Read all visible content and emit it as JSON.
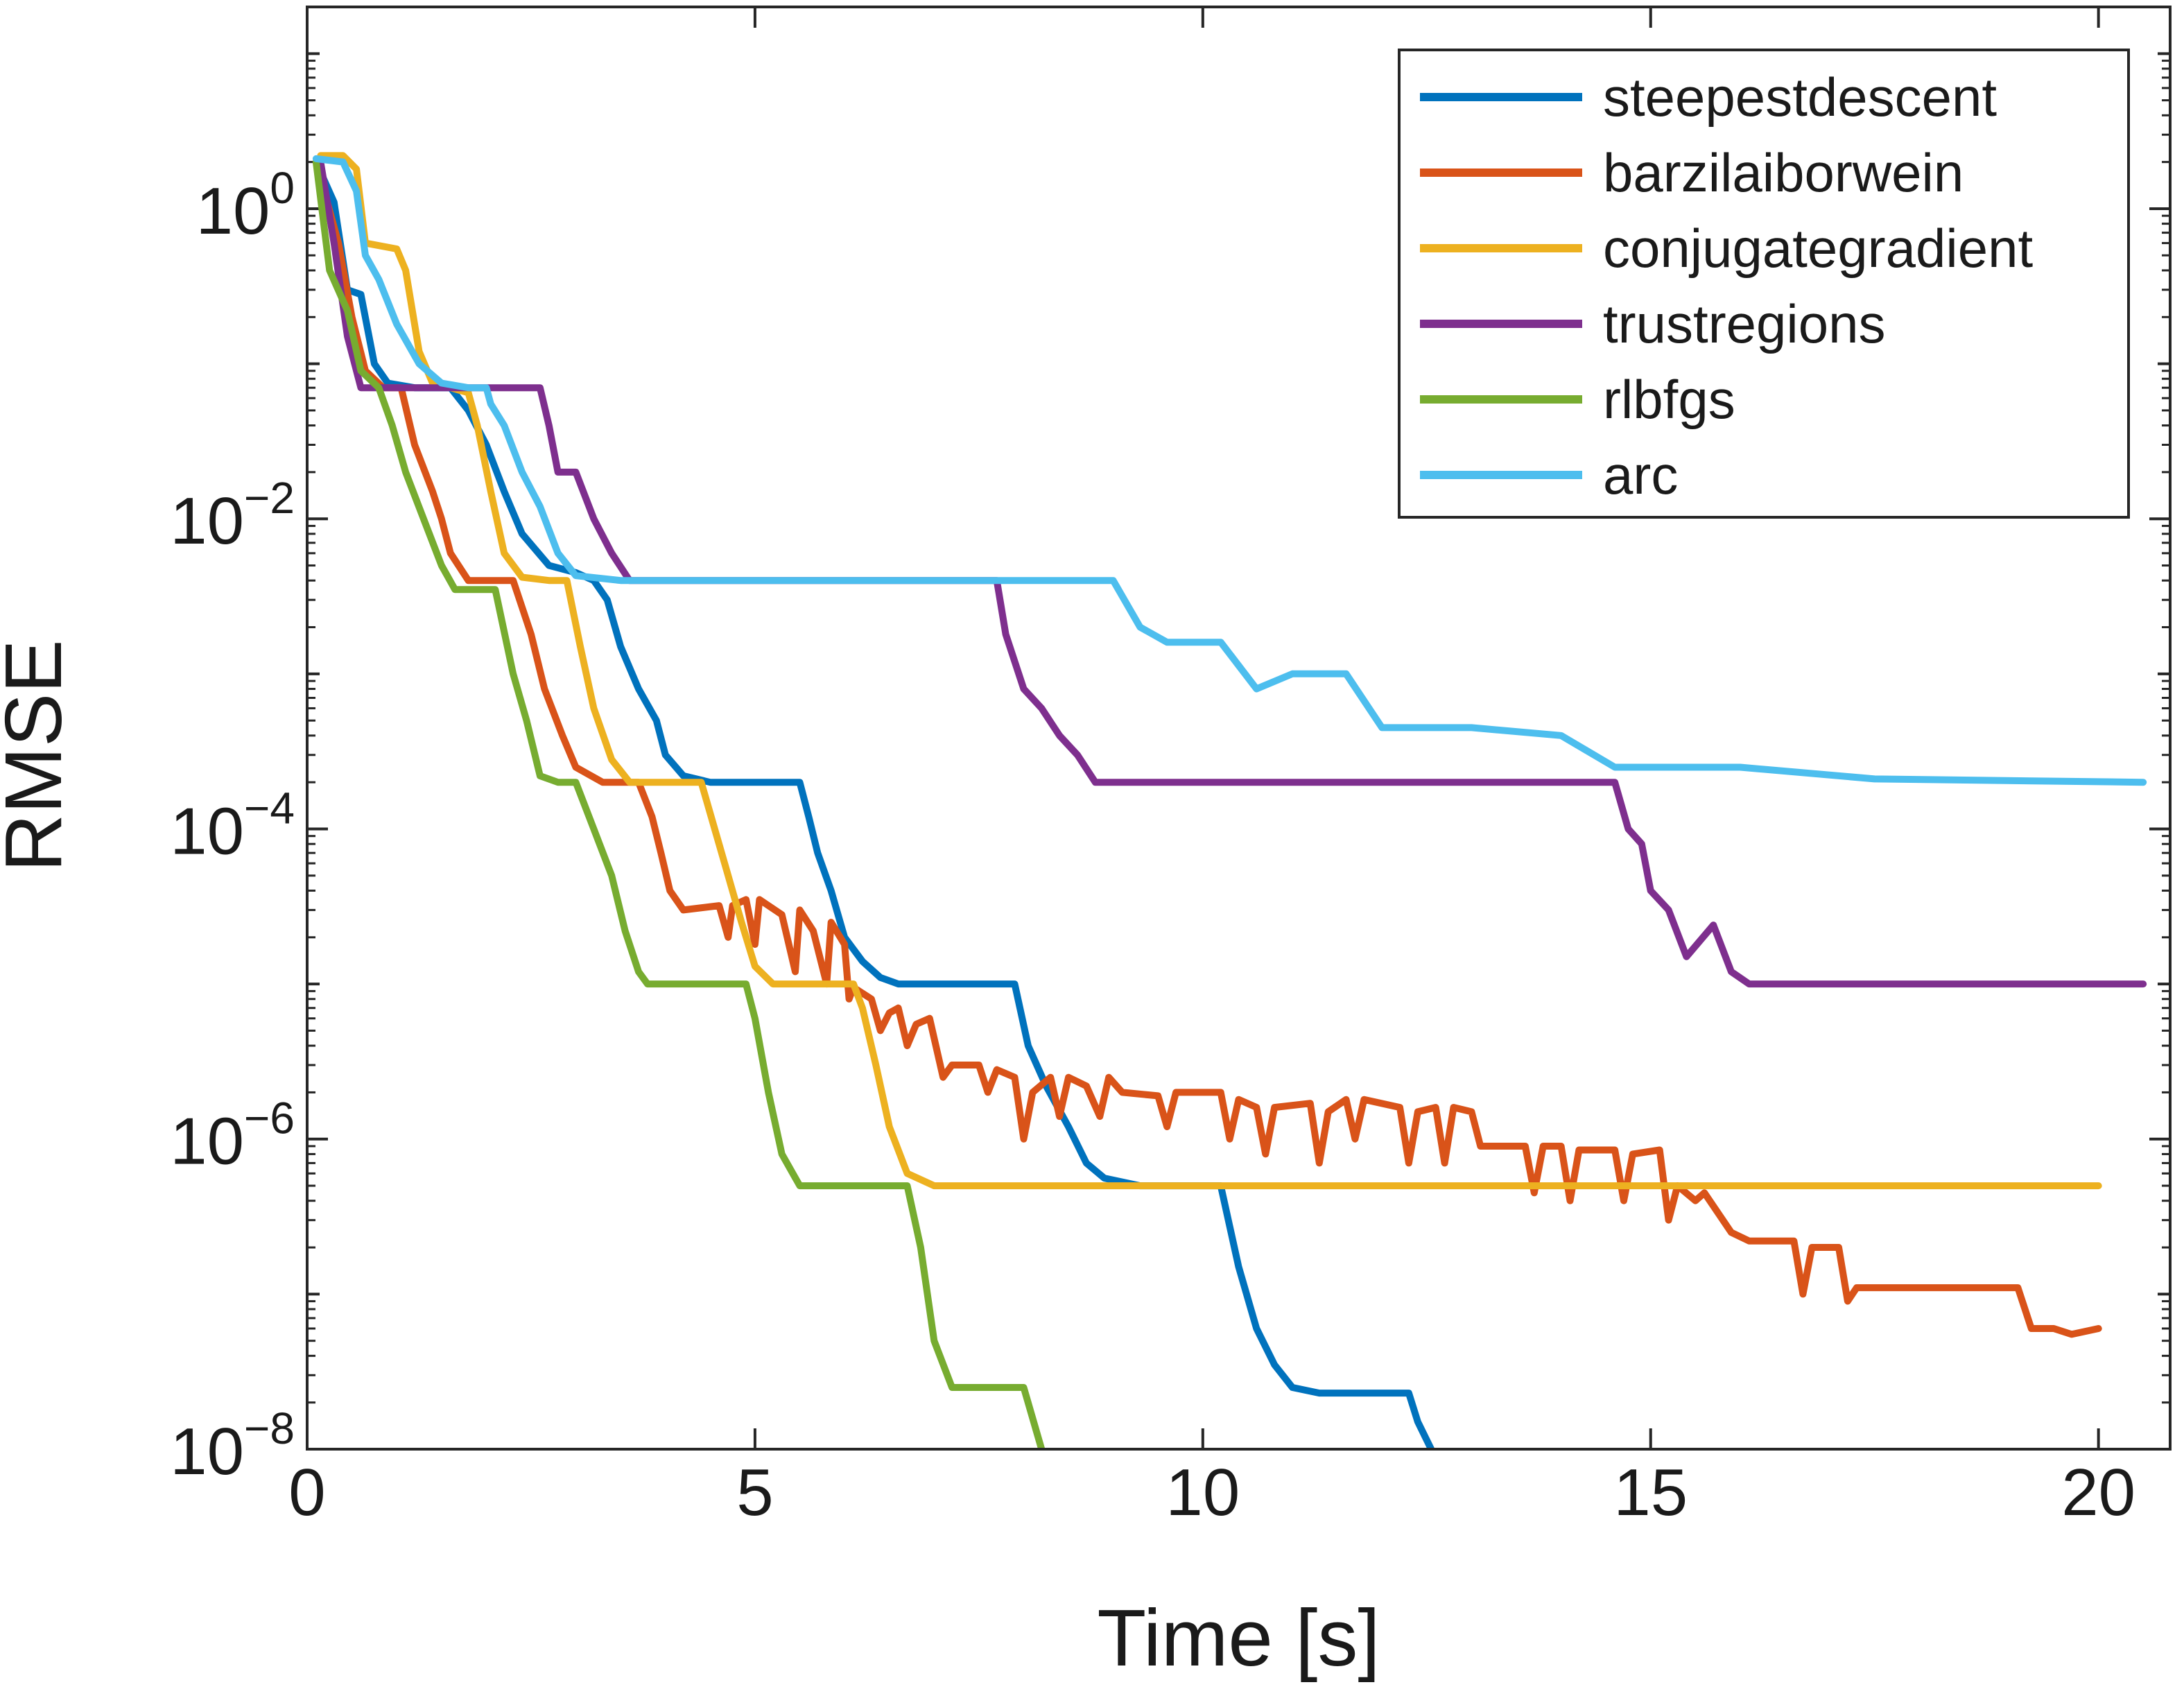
{
  "chart_data": {
    "type": "line",
    "xlabel": "Time [s]",
    "ylabel": "RMSE",
    "yscale": "log",
    "xlim": [
      0,
      20.8
    ],
    "ylim": [
      1e-08,
      20
    ],
    "xticks": [
      0,
      5,
      10,
      15,
      20
    ],
    "yticks": [
      {
        "base": "10",
        "exp": "0",
        "value": 1
      },
      {
        "base": "10",
        "exp": "−2",
        "value": 0.01
      },
      {
        "base": "10",
        "exp": "−4",
        "value": 0.0001
      },
      {
        "base": "10",
        "exp": "−6",
        "value": 1e-06
      },
      {
        "base": "10",
        "exp": "−8",
        "value": 1e-08
      }
    ],
    "grid": false,
    "legend_position": "top-right",
    "series": [
      {
        "name": "steepestdescent",
        "color": "#0072BD",
        "points": [
          [
            0.1,
            2
          ],
          [
            0.3,
            1.1
          ],
          [
            0.45,
            0.3
          ],
          [
            0.6,
            0.28
          ],
          [
            0.75,
            0.1
          ],
          [
            0.9,
            0.075
          ],
          [
            1.2,
            0.07
          ],
          [
            1.6,
            0.07
          ],
          [
            1.8,
            0.05
          ],
          [
            2.0,
            0.03
          ],
          [
            2.2,
            0.015
          ],
          [
            2.4,
            0.008
          ],
          [
            2.7,
            0.005
          ],
          [
            3.0,
            0.0045
          ],
          [
            3.2,
            0.004
          ],
          [
            3.35,
            0.003
          ],
          [
            3.5,
            0.0015
          ],
          [
            3.7,
            0.0008
          ],
          [
            3.9,
            0.0005
          ],
          [
            4.0,
            0.0003
          ],
          [
            4.2,
            0.00022
          ],
          [
            4.5,
            0.0002
          ],
          [
            5.5,
            0.0002
          ],
          [
            5.6,
            0.00012
          ],
          [
            5.7,
            7e-05
          ],
          [
            5.85,
            4e-05
          ],
          [
            6.0,
            2e-05
          ],
          [
            6.2,
            1.4e-05
          ],
          [
            6.4,
            1.1e-05
          ],
          [
            6.6,
            1e-05
          ],
          [
            7.9,
            1e-05
          ],
          [
            8.05,
            4e-06
          ],
          [
            8.25,
            2.2e-06
          ],
          [
            8.5,
            1.2e-06
          ],
          [
            8.7,
            7e-07
          ],
          [
            8.9,
            5.6e-07
          ],
          [
            9.3,
            5e-07
          ],
          [
            10.2,
            5e-07
          ],
          [
            10.4,
            1.5e-07
          ],
          [
            10.6,
            6e-08
          ],
          [
            10.8,
            3.5e-08
          ],
          [
            11.0,
            2.5e-08
          ],
          [
            11.3,
            2.3e-08
          ],
          [
            12.3,
            2.3e-08
          ],
          [
            12.4,
            1.5e-08
          ],
          [
            12.55,
            1e-08
          ]
        ]
      },
      {
        "name": "barzilaiborwein",
        "color": "#D95319",
        "points": [
          [
            0.1,
            2
          ],
          [
            0.35,
            0.6
          ],
          [
            0.5,
            0.2
          ],
          [
            0.65,
            0.09
          ],
          [
            0.85,
            0.07
          ],
          [
            1.05,
            0.07
          ],
          [
            1.2,
            0.03
          ],
          [
            1.4,
            0.015
          ],
          [
            1.5,
            0.01
          ],
          [
            1.6,
            0.006
          ],
          [
            1.8,
            0.004
          ],
          [
            2.3,
            0.004
          ],
          [
            2.5,
            0.0018
          ],
          [
            2.65,
            0.0008
          ],
          [
            2.85,
            0.0004
          ],
          [
            3.0,
            0.00025
          ],
          [
            3.3,
            0.0002
          ],
          [
            3.7,
            0.0002
          ],
          [
            3.85,
            0.00012
          ],
          [
            3.95,
            7e-05
          ],
          [
            4.05,
            4e-05
          ],
          [
            4.2,
            3e-05
          ],
          [
            4.6,
            3.2e-05
          ],
          [
            4.7,
            2e-05
          ],
          [
            4.75,
            3.2e-05
          ],
          [
            4.9,
            3.5e-05
          ],
          [
            5.0,
            1.8e-05
          ],
          [
            5.05,
            3.5e-05
          ],
          [
            5.3,
            2.8e-05
          ],
          [
            5.45,
            1.2e-05
          ],
          [
            5.5,
            3e-05
          ],
          [
            5.65,
            2.2e-05
          ],
          [
            5.8,
            1e-05
          ],
          [
            5.85,
            2.5e-05
          ],
          [
            6.0,
            1.8e-05
          ],
          [
            6.05,
            8e-06
          ],
          [
            6.1,
            9.5e-06
          ],
          [
            6.3,
            8e-06
          ],
          [
            6.4,
            5e-06
          ],
          [
            6.5,
            6.5e-06
          ],
          [
            6.6,
            7e-06
          ],
          [
            6.7,
            4e-06
          ],
          [
            6.8,
            5.5e-06
          ],
          [
            6.95,
            6e-06
          ],
          [
            7.1,
            2.5e-06
          ],
          [
            7.2,
            3e-06
          ],
          [
            7.5,
            3e-06
          ],
          [
            7.6,
            2e-06
          ],
          [
            7.7,
            2.8e-06
          ],
          [
            7.9,
            2.5e-06
          ],
          [
            8.0,
            1e-06
          ],
          [
            8.1,
            2e-06
          ],
          [
            8.3,
            2.5e-06
          ],
          [
            8.4,
            1.4e-06
          ],
          [
            8.5,
            2.5e-06
          ],
          [
            8.7,
            2.2e-06
          ],
          [
            8.85,
            1.4e-06
          ],
          [
            8.95,
            2.5e-06
          ],
          [
            9.1,
            2e-06
          ],
          [
            9.5,
            1.9e-06
          ],
          [
            9.6,
            1.2e-06
          ],
          [
            9.7,
            2e-06
          ],
          [
            10.2,
            2e-06
          ],
          [
            10.3,
            1e-06
          ],
          [
            10.4,
            1.8e-06
          ],
          [
            10.6,
            1.6e-06
          ],
          [
            10.7,
            8e-07
          ],
          [
            10.8,
            1.6e-06
          ],
          [
            11.2,
            1.7e-06
          ],
          [
            11.3,
            7e-07
          ],
          [
            11.4,
            1.5e-06
          ],
          [
            11.6,
            1.8e-06
          ],
          [
            11.7,
            1e-06
          ],
          [
            11.8,
            1.8e-06
          ],
          [
            12.2,
            1.6e-06
          ],
          [
            12.3,
            7e-07
          ],
          [
            12.4,
            1.5e-06
          ],
          [
            12.6,
            1.6e-06
          ],
          [
            12.7,
            7e-07
          ],
          [
            12.8,
            1.6e-06
          ],
          [
            13.0,
            1.5e-06
          ],
          [
            13.1,
            9e-07
          ],
          [
            13.6,
            9e-07
          ],
          [
            13.7,
            4.5e-07
          ],
          [
            13.8,
            9e-07
          ],
          [
            14.0,
            9e-07
          ],
          [
            14.1,
            4e-07
          ],
          [
            14.2,
            8.5e-07
          ],
          [
            14.6,
            8.5e-07
          ],
          [
            14.7,
            4e-07
          ],
          [
            14.8,
            8e-07
          ],
          [
            15.1,
            8.5e-07
          ],
          [
            15.2,
            3e-07
          ],
          [
            15.3,
            5e-07
          ],
          [
            15.5,
            4e-07
          ],
          [
            15.6,
            4.5e-07
          ],
          [
            15.9,
            2.5e-07
          ],
          [
            16.1,
            2.2e-07
          ],
          [
            16.6,
            2.2e-07
          ],
          [
            16.7,
            1e-07
          ],
          [
            16.8,
            2e-07
          ],
          [
            17.1,
            2e-07
          ],
          [
            17.2,
            9e-08
          ],
          [
            17.3,
            1.1e-07
          ],
          [
            19.1,
            1.1e-07
          ],
          [
            19.25,
            6e-08
          ],
          [
            19.5,
            6e-08
          ],
          [
            19.7,
            5.5e-08
          ],
          [
            20.0,
            6e-08
          ]
        ]
      },
      {
        "name": "conjugategradient",
        "color": "#EDB120",
        "points": [
          [
            0.15,
            2.2
          ],
          [
            0.4,
            2.2
          ],
          [
            0.55,
            1.8
          ],
          [
            0.65,
            0.6
          ],
          [
            1.0,
            0.55
          ],
          [
            1.1,
            0.4
          ],
          [
            1.25,
            0.12
          ],
          [
            1.4,
            0.075
          ],
          [
            1.6,
            0.07
          ],
          [
            1.8,
            0.065
          ],
          [
            1.9,
            0.04
          ],
          [
            2.05,
            0.015
          ],
          [
            2.2,
            0.006
          ],
          [
            2.4,
            0.0042
          ],
          [
            2.7,
            0.004
          ],
          [
            2.9,
            0.004
          ],
          [
            3.05,
            0.0015
          ],
          [
            3.2,
            0.0006
          ],
          [
            3.4,
            0.00028
          ],
          [
            3.6,
            0.0002
          ],
          [
            4.4,
            0.0002
          ],
          [
            4.55,
            0.0001
          ],
          [
            4.7,
            5e-05
          ],
          [
            4.85,
            2.5e-05
          ],
          [
            5.0,
            1.3e-05
          ],
          [
            5.2,
            1e-05
          ],
          [
            6.1,
            1e-05
          ],
          [
            6.2,
            7e-06
          ],
          [
            6.35,
            3e-06
          ],
          [
            6.5,
            1.2e-06
          ],
          [
            6.7,
            6e-07
          ],
          [
            7.0,
            5e-07
          ],
          [
            20.0,
            5e-07
          ]
        ]
      },
      {
        "name": "trustregions",
        "color": "#7E2F8E",
        "points": [
          [
            0.15,
            2
          ],
          [
            0.3,
            0.6
          ],
          [
            0.45,
            0.15
          ],
          [
            0.6,
            0.07
          ],
          [
            2.6,
            0.07
          ],
          [
            2.7,
            0.04
          ],
          [
            2.8,
            0.02
          ],
          [
            3.0,
            0.02
          ],
          [
            3.2,
            0.01
          ],
          [
            3.4,
            0.006
          ],
          [
            3.6,
            0.004
          ],
          [
            7.7,
            0.004
          ],
          [
            7.8,
            0.0018
          ],
          [
            8.0,
            0.0008
          ],
          [
            8.2,
            0.0006
          ],
          [
            8.4,
            0.0004
          ],
          [
            8.6,
            0.0003
          ],
          [
            8.8,
            0.0002
          ],
          [
            9.2,
            0.0002
          ],
          [
            14.6,
            0.0002
          ],
          [
            14.75,
            0.0001
          ],
          [
            14.9,
            8e-05
          ],
          [
            15.0,
            4e-05
          ],
          [
            15.2,
            3e-05
          ],
          [
            15.4,
            1.5e-05
          ],
          [
            15.7,
            2.4e-05
          ],
          [
            15.9,
            1.2e-05
          ],
          [
            16.1,
            1e-05
          ],
          [
            20.5,
            1e-05
          ]
        ]
      },
      {
        "name": "rlbfgs",
        "color": "#77AC30",
        "points": [
          [
            0.1,
            2
          ],
          [
            0.25,
            0.4
          ],
          [
            0.45,
            0.22
          ],
          [
            0.6,
            0.09
          ],
          [
            0.8,
            0.07
          ],
          [
            0.95,
            0.04
          ],
          [
            1.1,
            0.02
          ],
          [
            1.3,
            0.01
          ],
          [
            1.5,
            0.005
          ],
          [
            1.65,
            0.0035
          ],
          [
            2.1,
            0.0035
          ],
          [
            2.3,
            0.001
          ],
          [
            2.45,
            0.0005
          ],
          [
            2.6,
            0.00022
          ],
          [
            2.8,
            0.0002
          ],
          [
            3.0,
            0.0002
          ],
          [
            3.2,
            0.0001
          ],
          [
            3.4,
            5e-05
          ],
          [
            3.55,
            2.2e-05
          ],
          [
            3.7,
            1.2e-05
          ],
          [
            3.8,
            1e-05
          ],
          [
            4.9,
            1e-05
          ],
          [
            5.0,
            6e-06
          ],
          [
            5.15,
            2e-06
          ],
          [
            5.3,
            8e-07
          ],
          [
            5.5,
            5e-07
          ],
          [
            6.7,
            5e-07
          ],
          [
            6.85,
            2e-07
          ],
          [
            7.0,
            5e-08
          ],
          [
            7.2,
            2.5e-08
          ],
          [
            8.0,
            2.5e-08
          ],
          [
            8.2,
            1e-08
          ]
        ]
      },
      {
        "name": "arc",
        "color": "#4DBEEE",
        "points": [
          [
            0.1,
            2.1
          ],
          [
            0.4,
            2
          ],
          [
            0.55,
            1.3
          ],
          [
            0.65,
            0.5
          ],
          [
            0.8,
            0.35
          ],
          [
            1.0,
            0.18
          ],
          [
            1.25,
            0.1
          ],
          [
            1.5,
            0.075
          ],
          [
            1.8,
            0.07
          ],
          [
            2.0,
            0.07
          ],
          [
            2.05,
            0.055
          ],
          [
            2.2,
            0.04
          ],
          [
            2.4,
            0.02
          ],
          [
            2.6,
            0.012
          ],
          [
            2.8,
            0.006
          ],
          [
            3.0,
            0.0043
          ],
          [
            3.5,
            0.004
          ],
          [
            9.0,
            0.004
          ],
          [
            9.3,
            0.002
          ],
          [
            9.6,
            0.0016
          ],
          [
            10.2,
            0.0016
          ],
          [
            10.6,
            0.0008
          ],
          [
            11.0,
            0.001
          ],
          [
            11.6,
            0.001
          ],
          [
            12.0,
            0.00045
          ],
          [
            13.0,
            0.00045
          ],
          [
            14.0,
            0.0004
          ],
          [
            14.6,
            0.00025
          ],
          [
            16.0,
            0.00025
          ],
          [
            17.5,
            0.00021
          ],
          [
            20.5,
            0.0002
          ]
        ]
      }
    ]
  }
}
